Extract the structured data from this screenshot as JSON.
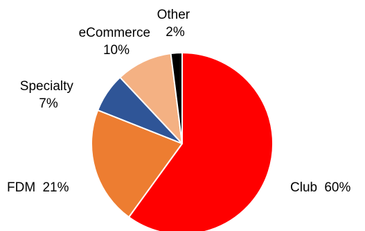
{
  "chart_data": {
    "type": "pie",
    "title": "",
    "slices": [
      {
        "label": "Club",
        "value": 60,
        "value_text": "60%",
        "color": "#FF0000"
      },
      {
        "label": "FDM",
        "value": 21,
        "value_text": "21%",
        "color": "#ED7D31"
      },
      {
        "label": "Specialty",
        "value": 7,
        "value_text": "7%",
        "color": "#2F5597"
      },
      {
        "label": "eCommerce",
        "value": 10,
        "value_text": "10%",
        "color": "#F4B183"
      },
      {
        "label": "Other",
        "value": 2,
        "value_text": "2%",
        "color": "#000000"
      }
    ],
    "start_angle_deg": 90,
    "direction": "clockwise",
    "legend": "none"
  }
}
